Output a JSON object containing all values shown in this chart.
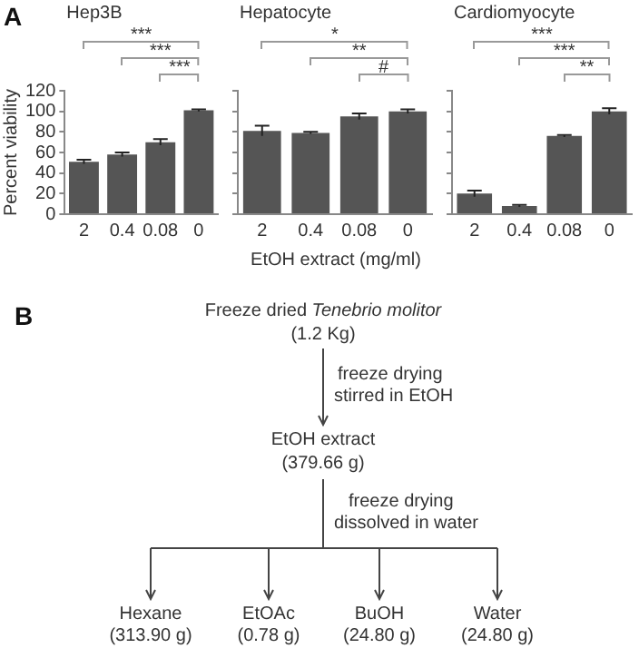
{
  "chart_data": [
    {
      "type": "bar",
      "title": "Hep3B",
      "ylabel": "Percent viability",
      "categories": [
        "2",
        "0.4",
        "0.08",
        "0"
      ],
      "values": [
        51,
        58,
        70,
        101
      ],
      "errors": [
        2,
        2,
        3,
        1
      ],
      "color": "#555555",
      "ylim": [
        0,
        120
      ],
      "yticks": [
        0,
        20,
        40,
        60,
        80,
        100,
        120
      ],
      "grid": false,
      "annotations": [
        "***",
        "***",
        "***"
      ]
    },
    {
      "type": "bar",
      "title": "Hepatocyte",
      "xlabel": "EtOH extract (mg/ml)",
      "categories": [
        "2",
        "0.4",
        "0.08",
        "0"
      ],
      "values": [
        81,
        79,
        95,
        100
      ],
      "errors": [
        5,
        1,
        3,
        2
      ],
      "color": "#555555",
      "ylim": [
        0,
        120
      ],
      "yticks": [
        {
          "value": 0,
          "label": null
        },
        {
          "value": 20,
          "label": null
        },
        {
          "value": 40,
          "label": null
        },
        {
          "value": 60,
          "label": null
        },
        {
          "value": 80,
          "label": null
        },
        {
          "value": 100,
          "label": null
        },
        {
          "value": 120,
          "label": null
        }
      ],
      "tick_labels": "x",
      "grid": false,
      "annotations": [
        "*",
        "**",
        "#"
      ]
    },
    {
      "type": "bar",
      "title": "Cardiomyocyte",
      "categories": [
        "2",
        "0.4",
        "0.08",
        "0"
      ],
      "values": [
        20,
        8,
        76,
        100
      ],
      "errors": [
        3,
        1,
        1,
        3
      ],
      "color": "#555555",
      "ylim": [
        0,
        120
      ],
      "yticks": [
        {
          "value": 0,
          "label": null
        },
        {
          "value": 20,
          "label": null
        },
        {
          "value": 40,
          "label": null
        },
        {
          "value": 60,
          "label": null
        },
        {
          "value": 80,
          "label": null
        },
        {
          "value": 100,
          "label": null
        },
        {
          "value": 120,
          "label": null
        }
      ],
      "tick_labels": "x",
      "grid": false,
      "annotations": [
        "***",
        "***",
        "**"
      ]
    },
    {
      "type": "other",
      "annotations": [
        "A",
        "B",
        "Freeze dried ",
        "Tenebrio molitor",
        "(1.2 Kg)",
        "freeze drying",
        "stirred in EtOH",
        "EtOH extract",
        "(379.66 g)",
        "freeze drying",
        "dissolved in water",
        "Hexane",
        "(313.90 g)",
        "EtOAc",
        "(0.78 g)",
        "BuOH",
        "(24.80 g)",
        "Water",
        "(24.80 g)"
      ]
    }
  ]
}
